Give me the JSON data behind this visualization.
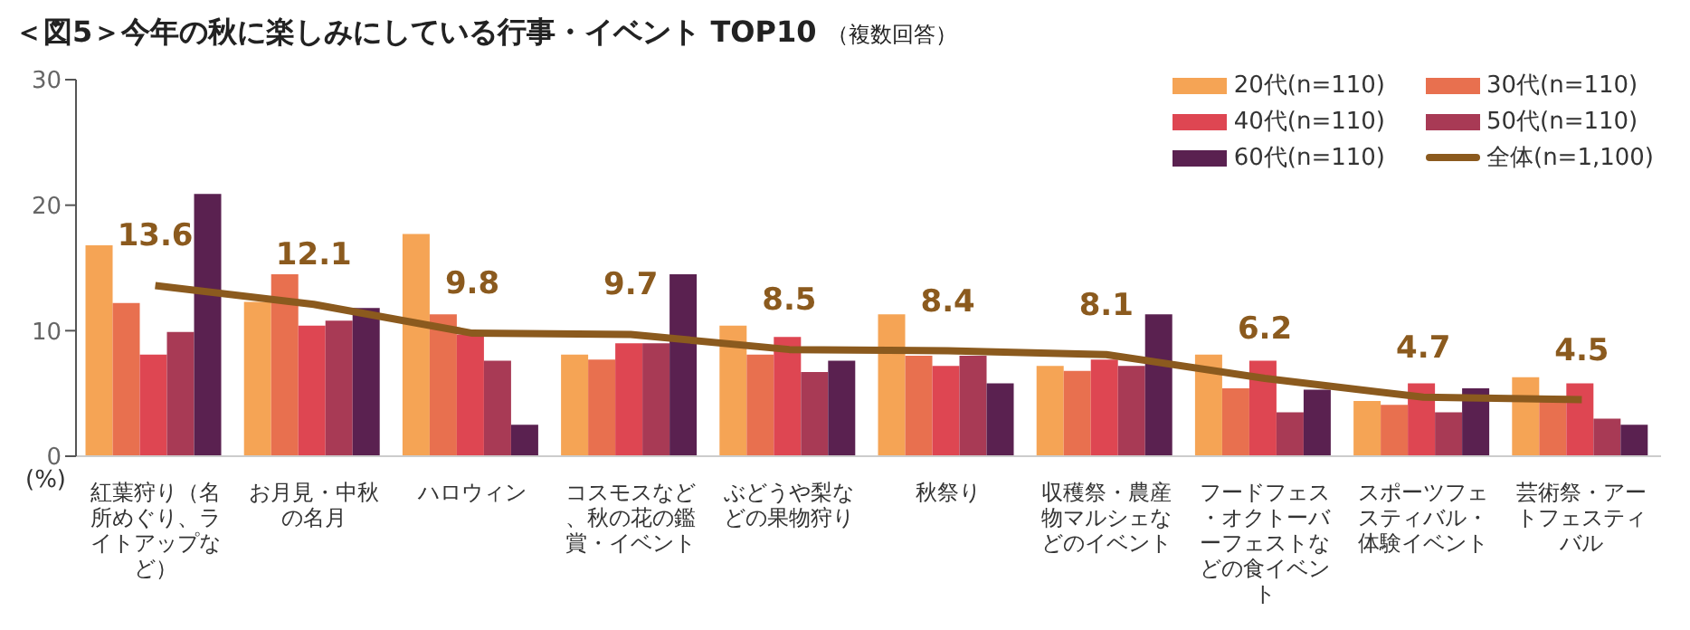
{
  "chart_data": {
    "type": "bar",
    "title": "＜図5＞今年の秋に楽しみにしている行事・イベント TOP10",
    "subtitle": "（複数回答）",
    "ylabel": "(%)",
    "categories": [
      "紅葉狩り（名所めぐり、ライトアップなど）",
      "お月見・中秋の名月",
      "ハロウィン",
      "コスモスなど、秋の花の鑑賞・イベント",
      "ぶどうや梨などの果物狩り",
      "秋祭り",
      "収穫祭・農産物マルシェなどのイベント",
      "フードフェス・オクトーバーフェストなどの食イベント",
      "スポーツフェスティバル・体験イベント",
      "芸術祭・アートフェスティバル"
    ],
    "series": [
      {
        "name": "20代(n=110)",
        "color": "#f5a455",
        "values": [
          16.8,
          12.3,
          17.7,
          8.1,
          10.4,
          11.3,
          7.2,
          8.1,
          4.4,
          6.3
        ]
      },
      {
        "name": "30代(n=110)",
        "color": "#e8704f",
        "values": [
          12.2,
          14.5,
          11.3,
          7.7,
          8.1,
          8.0,
          6.8,
          5.4,
          4.1,
          4.8
        ]
      },
      {
        "name": "40代(n=110)",
        "color": "#de4652",
        "values": [
          8.1,
          10.4,
          9.7,
          9.0,
          9.5,
          7.2,
          7.7,
          7.6,
          5.8,
          5.8
        ]
      },
      {
        "name": "50代(n=110)",
        "color": "#a83a55",
        "values": [
          9.9,
          10.8,
          7.6,
          9.0,
          6.7,
          8.0,
          7.2,
          3.5,
          3.5,
          3.0
        ]
      },
      {
        "name": "60代(n=110)",
        "color": "#5a2150",
        "values": [
          20.9,
          11.8,
          2.5,
          14.5,
          7.6,
          5.8,
          11.3,
          5.3,
          5.4,
          2.5
        ]
      },
      {
        "name": "全体(n=1,100)",
        "type": "line",
        "color": "#8b5a1e",
        "values": [
          13.6,
          12.1,
          9.8,
          9.7,
          8.5,
          8.4,
          8.1,
          6.2,
          4.7,
          4.5
        ],
        "data_labels": true
      }
    ],
    "ylim": [
      0,
      30
    ],
    "yticks": [
      0,
      10,
      20,
      30
    ],
    "legend": "top right",
    "marker": "none",
    "line_style": "solid"
  }
}
